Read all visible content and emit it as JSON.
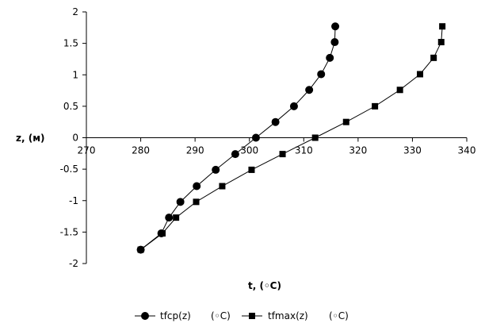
{
  "chart_data": {
    "type": "line",
    "xlabel": "t,  (◦C)",
    "ylabel": "z, (м)",
    "xlim": [
      270,
      340
    ],
    "ylim": [
      -2,
      2
    ],
    "x_ticks": [
      "270",
      "280",
      "290",
      "300",
      "310",
      "320",
      "330",
      "340"
    ],
    "y_ticks": [
      "2",
      "1.5",
      "1",
      "0.5",
      "0",
      "-0.5",
      "-1",
      "-1.5",
      "-2"
    ],
    "grid": false,
    "legend_position": "bottom",
    "series": [
      {
        "name": "tfcp(z)",
        "unit": "(◦C)",
        "marker": "circle",
        "color": "#000000",
        "points": [
          {
            "t": 280.0,
            "z": -1.78
          },
          {
            "t": 283.8,
            "z": -1.52
          },
          {
            "t": 285.2,
            "z": -1.27
          },
          {
            "t": 287.3,
            "z": -1.02
          },
          {
            "t": 290.3,
            "z": -0.77
          },
          {
            "t": 293.8,
            "z": -0.51
          },
          {
            "t": 297.4,
            "z": -0.26
          },
          {
            "t": 301.2,
            "z": 0.0
          },
          {
            "t": 304.8,
            "z": 0.25
          },
          {
            "t": 308.2,
            "z": 0.5
          },
          {
            "t": 311.0,
            "z": 0.76
          },
          {
            "t": 313.2,
            "z": 1.01
          },
          {
            "t": 314.8,
            "z": 1.27
          },
          {
            "t": 315.7,
            "z": 1.52
          },
          {
            "t": 315.8,
            "z": 1.77
          }
        ]
      },
      {
        "name": "tfmax(z)",
        "unit": "(◦C)",
        "marker": "square",
        "color": "#000000",
        "points": [
          {
            "t": 280.0,
            "z": -1.78
          },
          {
            "t": 284.0,
            "z": -1.52
          },
          {
            "t": 286.5,
            "z": -1.27
          },
          {
            "t": 290.2,
            "z": -1.02
          },
          {
            "t": 295.0,
            "z": -0.77
          },
          {
            "t": 300.4,
            "z": -0.51
          },
          {
            "t": 306.1,
            "z": -0.26
          },
          {
            "t": 312.1,
            "z": 0.0
          },
          {
            "t": 317.8,
            "z": 0.25
          },
          {
            "t": 323.1,
            "z": 0.5
          },
          {
            "t": 327.7,
            "z": 0.76
          },
          {
            "t": 331.4,
            "z": 1.01
          },
          {
            "t": 333.9,
            "z": 1.27
          },
          {
            "t": 335.3,
            "z": 1.52
          },
          {
            "t": 335.5,
            "z": 1.77
          }
        ]
      }
    ]
  }
}
